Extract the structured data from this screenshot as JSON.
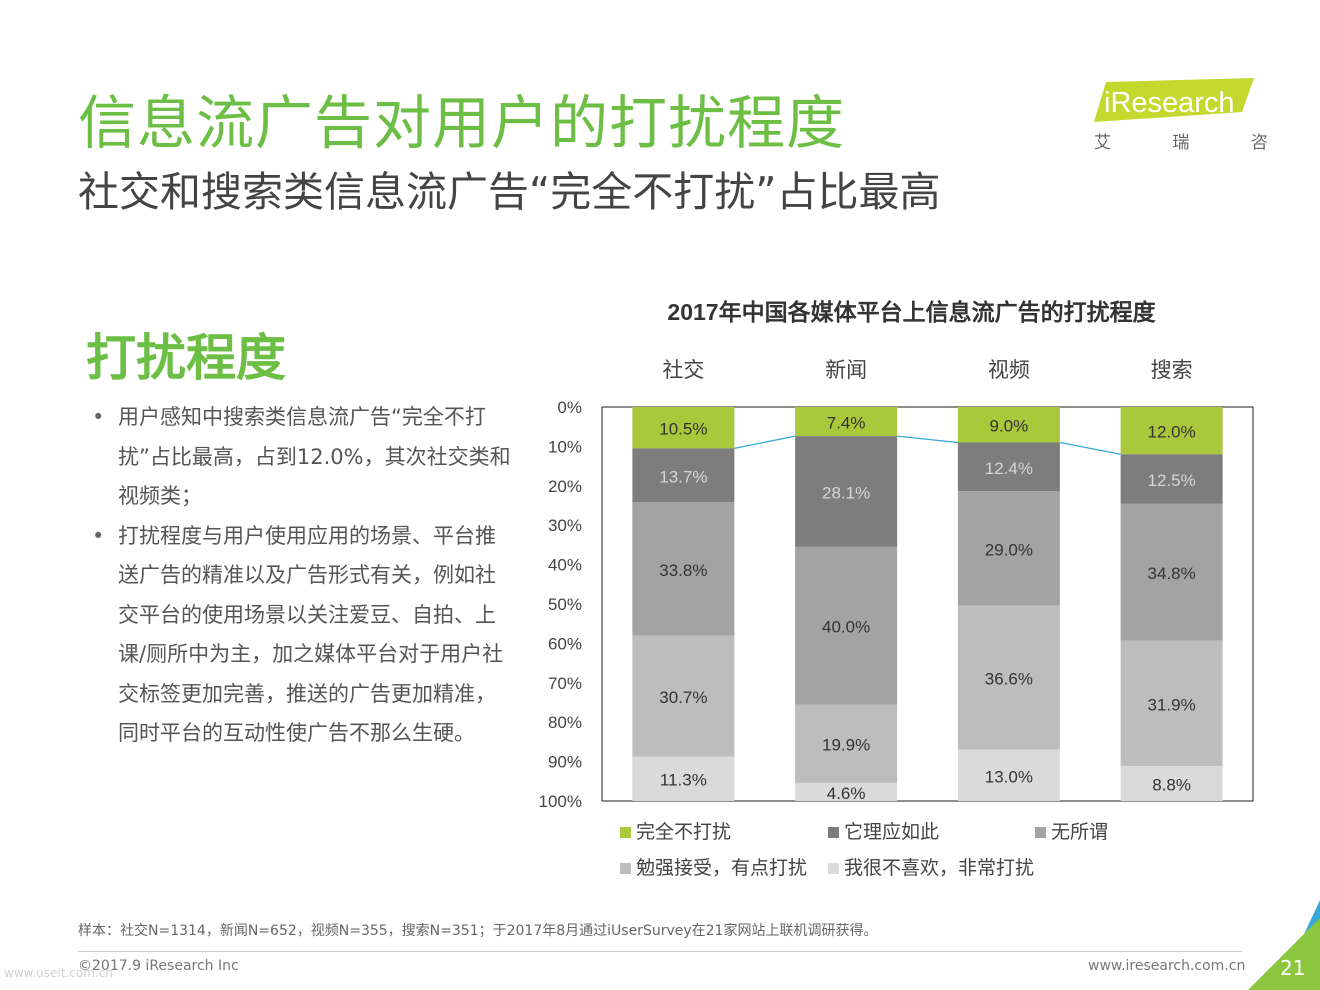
{
  "header": {
    "title": "信息流广告对用户的打扰程度",
    "subtitle": "社交和搜索类信息流广告“完全不打扰”占比最高"
  },
  "logo": {
    "wordmark": "iResearch",
    "chinese": "艾 瑞 咨 询",
    "brand_color": "#c4d92e"
  },
  "left_panel": {
    "section_title": "打扰程度",
    "bullets": [
      "用户感知中搜索类信息流广告“完全不打扰”占比最高，占到12.0%，其次社交类和视频类；",
      "打扰程度与用户使用应用的场景、平台推送广告的精准以及广告形式有关，例如社交平台的使用场景以关注爱豆、自拍、上课/厕所中为主，加之媒体平台对于用户社交标签更加完善，推送的广告更加精准，同时平台的互动性使广告不那么生硬。"
    ]
  },
  "chart_data": {
    "type": "bar",
    "stacked": true,
    "orientation": "vertical",
    "y_axis_reversed": true,
    "title": "2017年中国各媒体平台上信息流广告的打扰程度",
    "categories": [
      "社交",
      "新闻",
      "视频",
      "搜索"
    ],
    "ylim": [
      0,
      100
    ],
    "yticks": [
      "0%",
      "10%",
      "20%",
      "30%",
      "40%",
      "50%",
      "60%",
      "70%",
      "80%",
      "90%",
      "100%"
    ],
    "series": [
      {
        "name": "完全不打扰",
        "color": "#a8c93b",
        "values": [
          10.5,
          7.4,
          9.0,
          12.0
        ],
        "labels": [
          "10.5%",
          "7.4%",
          "9.0%",
          "12.0%"
        ]
      },
      {
        "name": "它理应如此",
        "color": "#7d7d7d",
        "values": [
          13.7,
          28.1,
          12.4,
          12.5
        ],
        "labels": [
          "13.7%",
          "28.1%",
          "12.4%",
          "12.5%"
        ]
      },
      {
        "name": "无所谓",
        "color": "#a3a3a3",
        "values": [
          33.8,
          40.0,
          29.0,
          34.8
        ],
        "labels": [
          "33.8%",
          "40.0%",
          "29.0%",
          "34.8%"
        ]
      },
      {
        "name": "勉强接受，有点打扰",
        "color": "#bdbdbd",
        "values": [
          30.7,
          19.9,
          36.6,
          31.9
        ],
        "labels": [
          "30.7%",
          "19.9%",
          "36.6%",
          "31.9%"
        ]
      },
      {
        "name": "我很不喜欢，非常打扰",
        "color": "#dadada",
        "values": [
          11.3,
          4.6,
          13.0,
          8.8
        ],
        "labels": [
          "11.3%",
          "4.6%",
          "13.0%",
          "8.8%"
        ]
      }
    ],
    "connector_color": "#36a9d8",
    "legend": "bottom",
    "grid": false
  },
  "footer": {
    "note": "样本：社交N=1314，新闻N=652，视频N=355，搜索N=351；于2017年8月通过iUserSurvey在21家网站上联机调研获得。",
    "copyright": "©2017.9 iResearch Inc",
    "website": "www.iresearch.com.cn",
    "page_number": "21"
  },
  "watermark": "www.useit.com.cn"
}
